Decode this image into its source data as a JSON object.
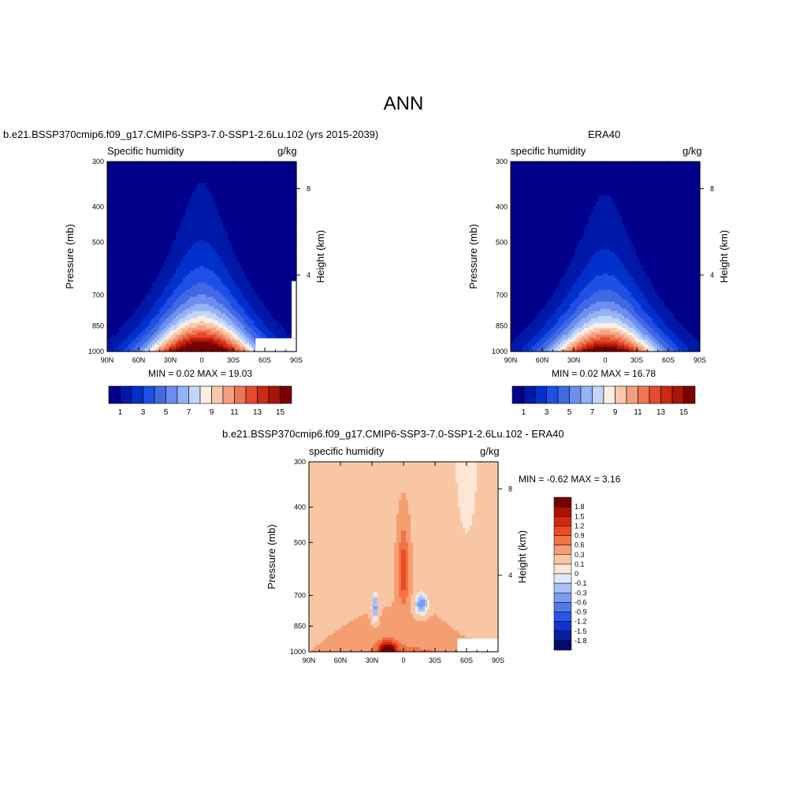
{
  "page": {
    "title": "ANN"
  },
  "palettes": {
    "humidity": [
      "#00008a",
      "#0018a8",
      "#0030cc",
      "#1f4fe6",
      "#4169e1",
      "#6b8ef0",
      "#95b2f5",
      "#c2d6fb",
      "#fbeee4",
      "#f8c7ad",
      "#f4a080",
      "#ef7655",
      "#e54a2e",
      "#cc2a12",
      "#a81406",
      "#7a0000"
    ],
    "difference": [
      "#000d6b",
      "#0a1e99",
      "#1433c8",
      "#2d52e8",
      "#5079ec",
      "#7b9cef",
      "#a9c1f5",
      "#dde9fb",
      "#fde6d6",
      "#f9c6a4",
      "#f59e72",
      "#f27346",
      "#ec4a20",
      "#d42a0b",
      "#a81302",
      "#780000"
    ]
  },
  "chart_data": [
    {
      "type": "contour",
      "id": "model",
      "title": "b.e21.BSSP370cmip6.f09_g17.CMIP6-SSP3-7.0-SSP1-2.6Lu.102 (yrs 2015-2039)",
      "left_label": "Specific humidity",
      "right_label": "g/kg",
      "ylabel": "Pressure (mb)",
      "ylabel_right": "Height (km)",
      "xticks": [
        "90N",
        "60N",
        "30N",
        "0",
        "30S",
        "60S",
        "90S"
      ],
      "yticks": [
        "300",
        "400",
        "500",
        "700",
        "850",
        "1000"
      ],
      "right_ticks": [
        "8",
        "4"
      ],
      "stats": "MIN =   0.02  MAX =  19.03",
      "levels": [
        0,
        1,
        2,
        3,
        4,
        5,
        6,
        7,
        8,
        9,
        10,
        11,
        12,
        13,
        14,
        15
      ],
      "colorbar_labels": [
        "1",
        "3",
        "5",
        "7",
        "9",
        "11",
        "13",
        "15"
      ],
      "surface_value": 19.03,
      "peak_lat": 0,
      "missing_region": "lower-right"
    },
    {
      "type": "contour",
      "id": "obs",
      "title": "ERA40",
      "left_label": "specific humidity",
      "right_label": "g/kg",
      "ylabel": "Pressure (mb)",
      "ylabel_right": "Height (km)",
      "xticks": [
        "90N",
        "60N",
        "30N",
        "0",
        "30S",
        "60S",
        "90S"
      ],
      "yticks": [
        "300",
        "400",
        "500",
        "700",
        "850",
        "1000"
      ],
      "right_ticks": [
        "8",
        "4"
      ],
      "stats": "MIN =   0.02  MAX =  16.78",
      "levels": [
        0,
        1,
        2,
        3,
        4,
        5,
        6,
        7,
        8,
        9,
        10,
        11,
        12,
        13,
        14,
        15
      ],
      "colorbar_labels": [
        "1",
        "3",
        "5",
        "7",
        "9",
        "11",
        "13",
        "15"
      ],
      "surface_value": 16.78,
      "peak_lat": 0
    },
    {
      "type": "contour",
      "id": "diff",
      "title": "b.e21.BSSP370cmip6.f09_g17.CMIP6-SSP3-7.0-SSP1-2.6Lu.102 - ERA40",
      "left_label": "specific humidity",
      "right_label": "g/kg",
      "ylabel": "Pressure (mb)",
      "ylabel_right": "Height (km)",
      "xticks": [
        "90N",
        "60N",
        "30N",
        "0",
        "30S",
        "60S",
        "90S"
      ],
      "yticks": [
        "300",
        "400",
        "500",
        "700",
        "850",
        "1000"
      ],
      "right_ticks": [
        "8",
        "4"
      ],
      "stats": "MIN =  -0.62  MAX =   3.16",
      "levels": [
        -1.8,
        -1.5,
        -1.2,
        -0.9,
        -0.6,
        -0.3,
        -0.1,
        0,
        0.1,
        0.3,
        0.6,
        0.9,
        1.2,
        1.5,
        1.8
      ],
      "colorbar_labels": [
        "1.8",
        "1.5",
        "1.2",
        "0.9",
        "0.6",
        "0.3",
        "0.1",
        "0",
        "-0.1",
        "-0.3",
        "-0.6",
        "-0.9",
        "-1.2",
        "-1.5",
        "-1.8"
      ],
      "missing_region": "lower-right"
    }
  ]
}
